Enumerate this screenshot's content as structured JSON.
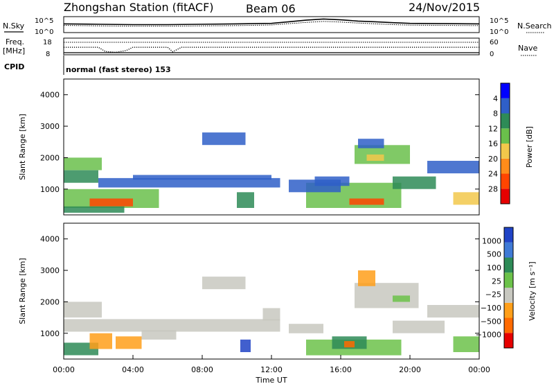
{
  "header": {
    "station": "Zhongshan Station (fitACF)",
    "beam": "Beam 06",
    "date": "24/Nov/2015"
  },
  "params": {
    "nsky_label": "N.Sky",
    "nsearch_label": "N.Search",
    "freq_label_line1": "Freq.",
    "freq_label_line2": "[MHz]",
    "nave_label": "Nave",
    "cpid_label": "CPID",
    "noise_ticks": [
      "10^5",
      "10^0"
    ],
    "freq_ticks": [
      "18",
      "8"
    ],
    "nave_ticks": [
      "60",
      "0"
    ],
    "cpid_text": "normal (fast stereo) 153"
  },
  "chart_data": [
    {
      "type": "line",
      "name": "noise-panel",
      "xlim": [
        0,
        24
      ],
      "yscale": "log",
      "ylim_labels": [
        "10^0",
        "10^5"
      ],
      "series": [
        {
          "name": "N.Sky",
          "style": "solid",
          "x": [
            0,
            2,
            4,
            6,
            8,
            10,
            12,
            13,
            14,
            15,
            16,
            17,
            18,
            19,
            20,
            22,
            24
          ],
          "y": [
            0.55,
            0.52,
            0.5,
            0.5,
            0.52,
            0.55,
            0.58,
            0.68,
            0.78,
            0.85,
            0.8,
            0.72,
            0.68,
            0.62,
            0.58,
            0.56,
            0.55
          ]
        },
        {
          "name": "N.Search",
          "style": "dotted",
          "x": [
            0,
            2,
            4,
            6,
            8,
            10,
            12,
            13,
            14,
            15,
            16,
            17,
            18,
            19,
            20,
            22,
            24
          ],
          "y": [
            0.45,
            0.42,
            0.4,
            0.4,
            0.42,
            0.44,
            0.48,
            0.56,
            0.64,
            0.7,
            0.66,
            0.6,
            0.55,
            0.5,
            0.47,
            0.45,
            0.44
          ]
        }
      ]
    },
    {
      "type": "line",
      "name": "frequency-panel",
      "xlim": [
        0,
        24
      ],
      "ylim": [
        8,
        18
      ],
      "series": [
        {
          "name": "Freq.",
          "style": "dots",
          "x": [
            0,
            2,
            2.4,
            3,
            3.6,
            4,
            6,
            6.3,
            6.8,
            8,
            12,
            16,
            20,
            24
          ],
          "y": [
            12.5,
            12.5,
            10,
            9.5,
            10.5,
            12.5,
            12.5,
            9.8,
            12.5,
            12.5,
            12.5,
            12.5,
            12.5,
            12.5
          ]
        },
        {
          "name": "Nave",
          "style": "dotted",
          "x": [
            0,
            24
          ],
          "y": [
            15,
            15
          ]
        }
      ]
    },
    {
      "type": "heatmap",
      "name": "power-panel",
      "xlabel": "",
      "ylabel": "Slant Range [km]",
      "xlim": [
        0,
        24
      ],
      "ylim": [
        180,
        4500
      ],
      "yticks": [
        1000,
        2000,
        3000,
        4000
      ],
      "colorbar": {
        "label": "Power [dB]",
        "ticks": [
          "4",
          "8",
          "12",
          "16",
          "20",
          "24",
          "28"
        ],
        "colors": [
          "#0000ff",
          "#2f5fc8",
          "#2e8b57",
          "#6abf4b",
          "#f2c84b",
          "#ff8c1a",
          "#ff4500",
          "#e60000"
        ]
      },
      "regions": [
        {
          "t0": 0.0,
          "t1": 2.2,
          "r0": 1600,
          "r1": 2000,
          "level": 3
        },
        {
          "t0": 0.0,
          "t1": 2.0,
          "r0": 1200,
          "r1": 1600,
          "level": 2
        },
        {
          "t0": 0.0,
          "t1": 5.5,
          "r0": 400,
          "r1": 1000,
          "level": 3
        },
        {
          "t0": 1.5,
          "t1": 4.0,
          "r0": 450,
          "r1": 700,
          "level": 6
        },
        {
          "t0": 2.0,
          "t1": 12.5,
          "r0": 1050,
          "r1": 1350,
          "level": 1
        },
        {
          "t0": 4.0,
          "t1": 12.0,
          "r0": 1300,
          "r1": 1450,
          "level": 1
        },
        {
          "t0": 0.0,
          "t1": 3.5,
          "r0": 250,
          "r1": 450,
          "level": 2
        },
        {
          "t0": 10.0,
          "t1": 11.0,
          "r0": 400,
          "r1": 900,
          "level": 2
        },
        {
          "t0": 14.0,
          "t1": 19.5,
          "r0": 400,
          "r1": 1200,
          "level": 3
        },
        {
          "t0": 16.5,
          "t1": 18.5,
          "r0": 500,
          "r1": 700,
          "level": 6
        },
        {
          "t0": 16.8,
          "t1": 20.0,
          "r0": 1800,
          "r1": 2400,
          "level": 3
        },
        {
          "t0": 17.5,
          "t1": 18.5,
          "r0": 1900,
          "r1": 2100,
          "level": 4
        },
        {
          "t0": 19.0,
          "t1": 21.5,
          "r0": 1000,
          "r1": 1400,
          "level": 2
        },
        {
          "t0": 21.0,
          "t1": 24.0,
          "r0": 1500,
          "r1": 1900,
          "level": 1
        },
        {
          "t0": 22.5,
          "t1": 24.0,
          "r0": 500,
          "r1": 900,
          "level": 4
        },
        {
          "t0": 14.5,
          "t1": 16.5,
          "r0": 1100,
          "r1": 1400,
          "level": 1
        },
        {
          "t0": 17.0,
          "t1": 18.5,
          "r0": 2300,
          "r1": 2600,
          "level": 1
        },
        {
          "t0": 8.0,
          "t1": 10.5,
          "r0": 2400,
          "r1": 2800,
          "level": 1
        },
        {
          "t0": 13.0,
          "t1": 16.0,
          "r0": 900,
          "r1": 1300,
          "level": 1
        }
      ]
    },
    {
      "type": "heatmap",
      "name": "velocity-panel",
      "xlabel": "Time UT",
      "ylabel": "Slant Range [km]",
      "xlim": [
        0,
        24
      ],
      "ylim": [
        180,
        4500
      ],
      "xticks": [
        "00:00",
        "04:00",
        "08:00",
        "12:00",
        "16:00",
        "20:00",
        "00:00"
      ],
      "yticks": [
        1000,
        2000,
        3000,
        4000
      ],
      "colorbar": {
        "label": "Velocity [m s⁻¹]",
        "ticks": [
          "1000",
          "500",
          "100",
          "25",
          "−25",
          "−100",
          "−500",
          "−1000"
        ],
        "colors": [
          "#2043c6",
          "#3f7ad6",
          "#2e8b57",
          "#6cc24a",
          "#c8c8c0",
          "#ff9f1a",
          "#ff6a00",
          "#e60000"
        ]
      },
      "regions": [
        {
          "t0": 0.0,
          "t1": 2.2,
          "r0": 1500,
          "r1": 2000,
          "level": 4
        },
        {
          "t0": 0.0,
          "t1": 12.5,
          "r0": 1050,
          "r1": 1450,
          "level": 4
        },
        {
          "t0": 0.0,
          "t1": 2.0,
          "r0": 300,
          "r1": 700,
          "level": 2
        },
        {
          "t0": 1.5,
          "t1": 2.8,
          "r0": 500,
          "r1": 1000,
          "level": 5
        },
        {
          "t0": 3.0,
          "t1": 4.5,
          "r0": 500,
          "r1": 900,
          "level": 5
        },
        {
          "t0": 4.5,
          "t1": 6.5,
          "r0": 800,
          "r1": 1100,
          "level": 4
        },
        {
          "t0": 10.2,
          "t1": 10.8,
          "r0": 400,
          "r1": 800,
          "level": 0
        },
        {
          "t0": 14.0,
          "t1": 19.5,
          "r0": 300,
          "r1": 800,
          "level": 3
        },
        {
          "t0": 15.5,
          "t1": 17.5,
          "r0": 500,
          "r1": 900,
          "level": 2
        },
        {
          "t0": 16.2,
          "t1": 16.8,
          "r0": 550,
          "r1": 750,
          "level": 6
        },
        {
          "t0": 16.8,
          "t1": 20.5,
          "r0": 1800,
          "r1": 2600,
          "level": 4
        },
        {
          "t0": 19.0,
          "t1": 20.0,
          "r0": 2000,
          "r1": 2200,
          "level": 3
        },
        {
          "t0": 19.0,
          "t1": 22.0,
          "r0": 1000,
          "r1": 1400,
          "level": 4
        },
        {
          "t0": 21.0,
          "t1": 24.0,
          "r0": 1500,
          "r1": 1900,
          "level": 4
        },
        {
          "t0": 22.5,
          "t1": 24.0,
          "r0": 400,
          "r1": 900,
          "level": 3
        },
        {
          "t0": 17.0,
          "t1": 18.0,
          "r0": 2500,
          "r1": 3000,
          "level": 5
        },
        {
          "t0": 8.0,
          "t1": 10.5,
          "r0": 2400,
          "r1": 2800,
          "level": 4
        },
        {
          "t0": 13.0,
          "t1": 15.0,
          "r0": 1000,
          "r1": 1300,
          "level": 4
        },
        {
          "t0": 11.5,
          "t1": 12.5,
          "r0": 1400,
          "r1": 1800,
          "level": 4
        }
      ]
    }
  ]
}
